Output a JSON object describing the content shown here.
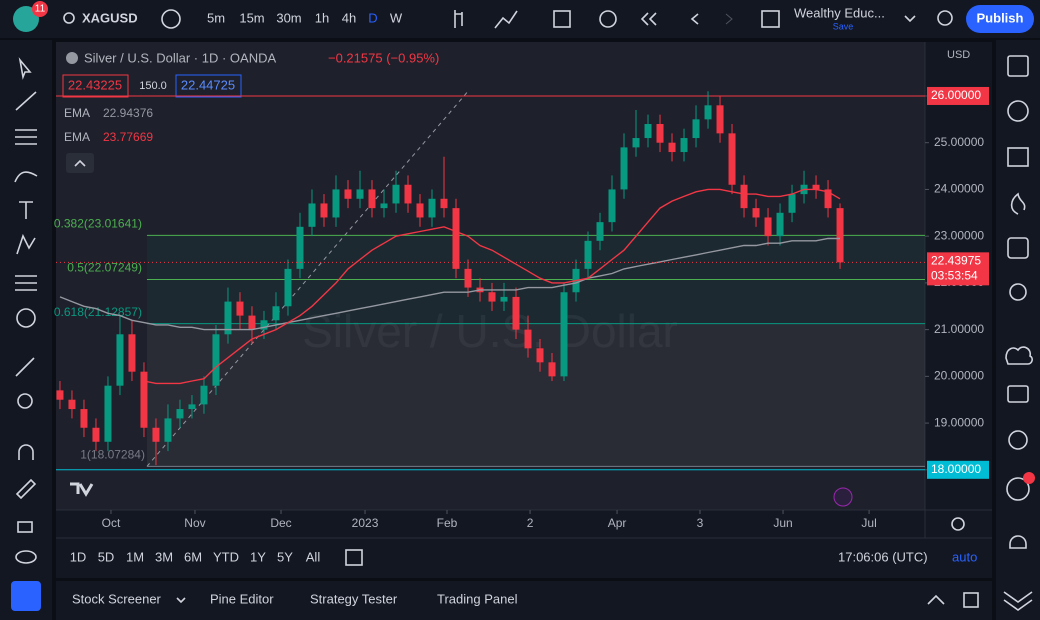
{
  "header": {
    "badge": "11",
    "symbol": "XAGUSD",
    "intervals": [
      "5m",
      "15m",
      "30m",
      "1h",
      "4h",
      "D",
      "W"
    ],
    "account": "Wealthy Educ...",
    "save": "Save",
    "publish": "Publish"
  },
  "footer": {
    "ranges": [
      "1D",
      "5D",
      "1M",
      "3M",
      "6M",
      "YTD",
      "1Y",
      "5Y",
      "All"
    ],
    "clock": "17:06:06 (UTC)",
    "scale_mode": "auto",
    "tabs": [
      "Stock Screener",
      "Pine Editor",
      "Strategy Tester",
      "Trading Panel"
    ]
  },
  "chart_data": {
    "type": "candlestick",
    "title": "Silver / U.S. Dollar · 1D · OANDA",
    "change": "−0.21575 (−0.95%)",
    "watermark": "Silver / U.S. Dollar",
    "currency": "USD",
    "bid": "22.43225",
    "spread": "150.0",
    "ask": "22.44725",
    "up_color": "#089981",
    "down_color": "#f23645",
    "open": [
      19.7,
      19.5,
      19.3,
      18.9,
      18.6,
      19.8,
      20.9,
      20.1,
      18.9,
      18.6,
      19.1,
      19.3,
      19.4,
      19.8,
      20.9,
      21.6,
      21.3,
      21.0,
      21.2,
      21.5,
      22.3,
      23.2,
      23.7,
      23.4,
      24.0,
      23.8,
      24.0,
      23.6,
      23.7,
      24.1,
      23.7,
      23.4,
      23.8,
      23.6,
      22.3,
      21.9,
      21.8,
      21.6,
      21.7,
      21.0,
      20.6,
      20.3,
      20.0,
      21.8,
      22.3,
      22.9,
      23.3,
      24.0,
      24.9,
      25.1,
      25.4,
      25.0,
      24.8,
      25.1,
      25.5,
      25.8,
      25.2,
      24.1,
      23.6,
      23.4,
      23.0,
      23.5,
      23.9,
      24.1,
      24.0,
      23.6
    ],
    "high": [
      19.9,
      19.7,
      19.5,
      19.1,
      20.0,
      21.3,
      21.2,
      20.3,
      19.1,
      19.4,
      19.5,
      19.6,
      20.0,
      21.1,
      21.9,
      21.8,
      21.5,
      21.4,
      21.8,
      22.5,
      23.5,
      24.0,
      23.9,
      24.3,
      24.2,
      24.4,
      24.2,
      24.0,
      24.4,
      24.3,
      23.9,
      24.0,
      24.7,
      23.8,
      22.5,
      22.1,
      22.0,
      22.0,
      21.9,
      21.3,
      20.8,
      20.5,
      22.0,
      22.5,
      23.1,
      23.5,
      24.3,
      25.2,
      25.7,
      25.6,
      25.6,
      25.2,
      25.3,
      25.8,
      26.1,
      26.0,
      25.4,
      24.3,
      23.8,
      23.6,
      23.7,
      24.1,
      24.4,
      24.3,
      24.2,
      23.7
    ],
    "low": [
      19.3,
      19.1,
      18.7,
      18.4,
      18.4,
      19.6,
      19.9,
      18.7,
      18.1,
      18.4,
      18.9,
      19.1,
      19.2,
      19.6,
      20.7,
      21.0,
      20.7,
      20.8,
      21.0,
      21.3,
      22.1,
      23.0,
      23.2,
      23.2,
      23.6,
      23.6,
      23.4,
      23.4,
      23.5,
      23.5,
      23.2,
      23.2,
      23.4,
      22.1,
      21.7,
      21.6,
      21.4,
      21.4,
      20.8,
      20.4,
      20.1,
      19.9,
      19.9,
      21.6,
      22.1,
      22.7,
      23.1,
      23.8,
      24.7,
      24.9,
      24.8,
      24.6,
      24.6,
      24.9,
      25.3,
      25.0,
      23.9,
      23.4,
      23.2,
      22.8,
      22.8,
      23.3,
      23.7,
      23.8,
      23.4,
      22.3
    ],
    "close": [
      19.5,
      19.3,
      18.9,
      18.6,
      19.8,
      20.9,
      20.1,
      18.9,
      18.6,
      19.1,
      19.3,
      19.4,
      19.8,
      20.9,
      21.6,
      21.3,
      21.0,
      21.2,
      21.5,
      22.3,
      23.2,
      23.7,
      23.4,
      24.0,
      23.8,
      24.0,
      23.6,
      23.7,
      24.1,
      23.7,
      23.4,
      23.8,
      23.6,
      22.3,
      21.9,
      21.8,
      21.6,
      21.7,
      21.0,
      20.6,
      20.3,
      20.0,
      21.8,
      22.3,
      22.9,
      23.3,
      24.0,
      24.9,
      25.1,
      25.4,
      25.0,
      24.8,
      25.1,
      25.5,
      25.8,
      25.2,
      24.1,
      23.6,
      23.4,
      23.0,
      23.5,
      23.9,
      24.1,
      24.0,
      23.6,
      22.44
    ],
    "series": [
      {
        "name": "EMA",
        "last": "22.94376",
        "color": "#9598a1",
        "values": [
          21.7,
          21.6,
          21.5,
          21.45,
          21.35,
          21.3,
          21.2,
          21.15,
          21.1,
          21.1,
          21.05,
          21.05,
          21.0,
          21.0,
          21.0,
          21.0,
          21.0,
          21.05,
          21.1,
          21.15,
          21.2,
          21.25,
          21.3,
          21.35,
          21.4,
          21.45,
          21.5,
          21.55,
          21.6,
          21.65,
          21.7,
          21.75,
          21.8,
          21.8,
          21.8,
          21.85,
          21.85,
          21.85,
          21.85,
          21.9,
          21.9,
          21.9,
          21.95,
          22.0,
          22.1,
          22.15,
          22.2,
          22.3,
          22.35,
          22.4,
          22.45,
          22.5,
          22.55,
          22.6,
          22.65,
          22.7,
          22.75,
          22.8,
          22.8,
          22.85,
          22.85,
          22.9,
          22.9,
          22.9,
          22.95,
          22.95
        ]
      },
      {
        "name": "EMA",
        "last": "23.77669",
        "color": "#f23645",
        "values": [
          null,
          null,
          null,
          null,
          null,
          null,
          null,
          19.9,
          19.85,
          19.85,
          19.85,
          19.9,
          19.95,
          20.2,
          20.4,
          20.6,
          20.8,
          20.9,
          21.0,
          21.15,
          21.3,
          21.5,
          21.75,
          22.0,
          22.3,
          22.5,
          22.7,
          22.85,
          23.0,
          23.05,
          23.1,
          23.15,
          23.2,
          23.1,
          23.0,
          22.8,
          22.7,
          22.55,
          22.4,
          22.25,
          22.1,
          22.0,
          22.0,
          22.05,
          22.1,
          22.3,
          22.5,
          22.7,
          23.0,
          23.3,
          23.6,
          23.75,
          23.85,
          23.95,
          24.0,
          24.0,
          23.95,
          23.9,
          23.9,
          23.85,
          23.85,
          23.9,
          24.0,
          24.0,
          23.95,
          23.8
        ]
      }
    ],
    "fib_levels": [
      {
        "value": 23.01641,
        "label": "0.382(23.01641)",
        "color": "#4caf50"
      },
      {
        "value": 22.07249,
        "label": "0.5(22.07249)",
        "color": "#4caf50"
      },
      {
        "value": 21.12857,
        "label": "0.618(21.12857)",
        "color": "#089981"
      },
      {
        "value": 18.07284,
        "label": "1(18.07284)",
        "color": "#787b86"
      }
    ],
    "levels": [
      {
        "value": 26,
        "label": "26.00000",
        "color": "#f23645"
      },
      {
        "value": 18,
        "label": "18.00000",
        "color": "#00bcd4"
      }
    ],
    "last_price": 22.43975,
    "countdown": "03:53:54",
    "xlim": [
      -0.33,
      72.08
    ],
    "ylim": [
      17.14,
      27.155
    ],
    "xticks": [
      {
        "value": 4.25,
        "label": "Oct"
      },
      {
        "value": 11.25,
        "label": "Nov"
      },
      {
        "value": 18.42,
        "label": "Dec"
      },
      {
        "value": 25.42,
        "label": "2023"
      },
      {
        "value": 32.25,
        "label": "Feb"
      },
      {
        "value": 39.17,
        "label": "2"
      },
      {
        "value": 46.42,
        "label": "Apr"
      },
      {
        "value": 53.33,
        "label": "3"
      },
      {
        "value": 60.25,
        "label": "Jun"
      },
      {
        "value": 67.42,
        "label": "Jul"
      }
    ],
    "yticks": [
      {
        "value": 18,
        "label": "18.00000"
      },
      {
        "value": 19,
        "label": "19.00000"
      },
      {
        "value": 20,
        "label": "20.00000"
      },
      {
        "value": 21,
        "label": "21.00000"
      },
      {
        "value": 22,
        "label": "22.00000"
      },
      {
        "value": 23,
        "label": "23.00000"
      },
      {
        "value": 24,
        "label": "24.00000"
      },
      {
        "value": 25,
        "label": "25.00000"
      },
      {
        "value": 26,
        "label": "26.00000"
      }
    ]
  }
}
